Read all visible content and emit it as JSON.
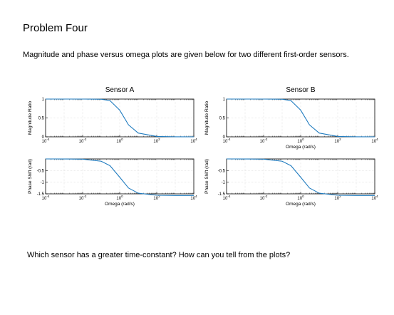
{
  "heading": "Problem Four",
  "intro": "Magnitude and phase versus omega plots are given below for two different first-order sensors.",
  "question": "Which sensor has a greater time-constant? How can you tell from the plots?",
  "chart_data": [
    {
      "type": "line",
      "title": "Sensor A",
      "x_scale": "log",
      "xlim": [
        0.0001,
        10000
      ],
      "xlabel": "",
      "ylabel": "Magnitude Ratio",
      "ylim": [
        0,
        1
      ],
      "x_ticks": [
        "10-4",
        "10-2",
        "100",
        "102",
        "104"
      ],
      "y_ticks": [
        "0",
        "0.5",
        "1"
      ],
      "grid": true,
      "series": [
        {
          "x": [
            0.0001,
            0.001,
            0.01,
            0.1,
            0.3,
            1,
            3,
            10,
            100,
            1000,
            10000
          ],
          "y": [
            1,
            1,
            1,
            0.995,
            0.958,
            0.707,
            0.316,
            0.1,
            0.01,
            0.001,
            0.0001
          ]
        }
      ]
    },
    {
      "type": "line",
      "title": "",
      "x_scale": "log",
      "xlim": [
        0.0001,
        10000
      ],
      "xlabel": "Omega (rad/s)",
      "ylabel": "Phase Shift (rad)",
      "ylim": [
        -1.5,
        0
      ],
      "x_ticks": [
        "10-4",
        "10-2",
        "100",
        "102",
        "104"
      ],
      "y_ticks": [
        "-1.5",
        "-1",
        "-0.5"
      ],
      "grid": true,
      "series": [
        {
          "x": [
            0.0001,
            0.001,
            0.01,
            0.1,
            0.3,
            1,
            3,
            10,
            100,
            1000,
            10000
          ],
          "y": [
            -0.0001,
            -0.001,
            -0.01,
            -0.0997,
            -0.2915,
            -0.7854,
            -1.249,
            -1.4711,
            -1.5608,
            -1.5698,
            -1.5707
          ]
        }
      ]
    },
    {
      "type": "line",
      "title": "Sensor B",
      "x_scale": "log",
      "xlim": [
        0.0001,
        10000
      ],
      "xlabel": "Omega (rad/s)",
      "ylabel": "Magnitude Ratio",
      "ylim": [
        0,
        1
      ],
      "x_ticks": [
        "10-4",
        "10-2",
        "100",
        "102",
        "104"
      ],
      "y_ticks": [
        "0",
        "0.5",
        "1"
      ],
      "grid": true,
      "series": [
        {
          "x": [
            0.0001,
            0.001,
            0.01,
            0.1,
            0.3,
            1,
            3,
            10,
            100,
            1000,
            10000
          ],
          "y": [
            1,
            1,
            1,
            0.995,
            0.958,
            0.707,
            0.316,
            0.1,
            0.01,
            0.001,
            0.0001
          ]
        }
      ]
    },
    {
      "type": "line",
      "title": "",
      "x_scale": "log",
      "xlim": [
        0.0001,
        10000
      ],
      "xlabel": "Omega (rad/s)",
      "ylabel": "Phase Shift (rad)",
      "ylim": [
        -1.5,
        0
      ],
      "x_ticks": [
        "10-4",
        "10-2",
        "100",
        "102",
        "104"
      ],
      "y_ticks": [
        "-1.5",
        "-1",
        "-0.5"
      ],
      "grid": true,
      "series": [
        {
          "x": [
            0.0001,
            0.001,
            0.01,
            0.1,
            0.3,
            1,
            3,
            10,
            100,
            1000,
            10000
          ],
          "y": [
            -0.0001,
            -0.001,
            -0.01,
            -0.0997,
            -0.2915,
            -0.7854,
            -1.249,
            -1.4711,
            -1.5608,
            -1.5698,
            -1.5707
          ]
        }
      ]
    }
  ],
  "colors": {
    "curve": "#1f7bbf",
    "grid": "#d9d9d9"
  }
}
